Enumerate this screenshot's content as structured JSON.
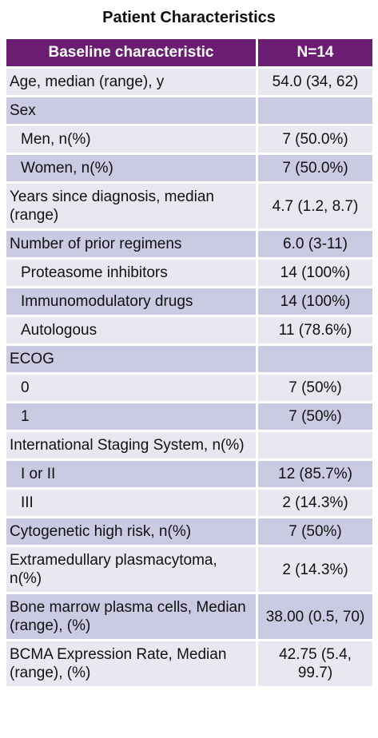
{
  "title": "Patient Characteristics",
  "header": {
    "col1": "Baseline characteristic",
    "col2": "N=14"
  },
  "rows": [
    {
      "label": "Age, median (range), y",
      "value": "54.0 (34, 62)"
    },
    {
      "label": "Sex",
      "value": ""
    },
    {
      "label": "Men, n(%)",
      "value": "7 (50.0%)"
    },
    {
      "label": "Women, n(%)",
      "value": "7 (50.0%)"
    },
    {
      "label": "Years since diagnosis, median (range)",
      "value": "4.7 (1.2, 8.7)"
    },
    {
      "label": "Number of prior regimens",
      "value": "6.0 (3-11)"
    },
    {
      "label": "Proteasome inhibitors",
      "value": "14 (100%)"
    },
    {
      "label": "Immunomodulatory drugs",
      "value": "14 (100%)"
    },
    {
      "label": "Autologous",
      "value": "11 (78.6%)"
    },
    {
      "label": "ECOG",
      "value": ""
    },
    {
      "label": "0",
      "value": "7 (50%)"
    },
    {
      "label": "1",
      "value": "7 (50%)"
    },
    {
      "label": "International Staging System, n(%)",
      "value": ""
    },
    {
      "label": "I or II",
      "value": "12 (85.7%)"
    },
    {
      "label": "III",
      "value": "2 (14.3%)"
    },
    {
      "label": "Cytogenetic high risk, n(%)",
      "value": "7 (50%)"
    },
    {
      "label": "Extramedullary plasmacytoma, n(%)",
      "value": "2 (14.3%)"
    },
    {
      "label": "Bone marrow plasma cells, Median (range), (%)",
      "value": "38.00 (0.5, 70)"
    },
    {
      "label": "BCMA Expression Rate, Median (range), (%)",
      "value": "42.75 (5.4, 99.7)"
    }
  ]
}
